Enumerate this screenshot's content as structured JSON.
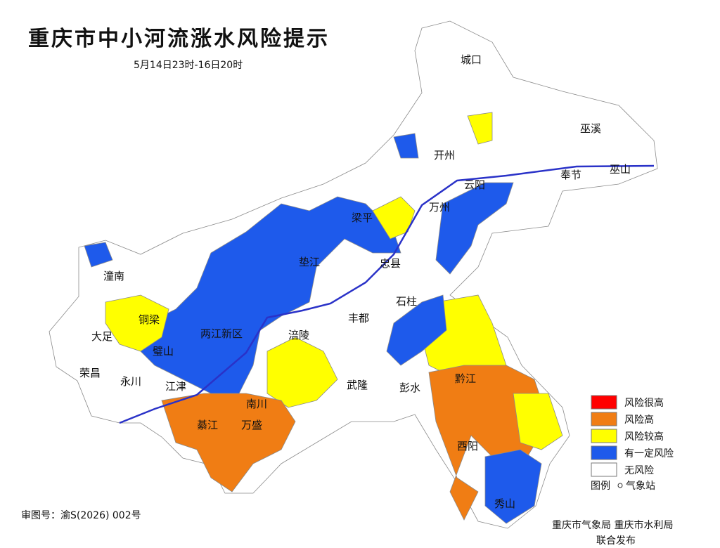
{
  "header": {
    "title": "重庆市中小河流涨水风险提示",
    "subtitle": "5月14日23时-16日20时"
  },
  "legend": {
    "items": [
      {
        "label": "风险很高",
        "color": "#ff0000"
      },
      {
        "label": "风险高",
        "color": "#f07d14"
      },
      {
        "label": "风险较高",
        "color": "#ffff00"
      },
      {
        "label": "有一定风险",
        "color": "#1e5aeb"
      },
      {
        "label": "无风险",
        "color": "#ffffff"
      }
    ],
    "caption": "图例",
    "station": "气象站"
  },
  "places": [
    "城口",
    "巫溪",
    "开州",
    "云阳",
    "奉节",
    "巫山",
    "万州",
    "梁平",
    "忠县",
    "垫江",
    "石柱",
    "丰都",
    "涪陵",
    "潼南",
    "铜梁",
    "大足",
    "荣昌",
    "永川",
    "璧山",
    "两江新区",
    "江津",
    "綦江",
    "万盛",
    "南川",
    "武隆",
    "彭水",
    "黔江",
    "酉阳",
    "秀山"
  ],
  "footer": {
    "map_number": "审图号：渝S(2026) 002号",
    "publisher": "重庆市气象局  重庆市水利局",
    "publisher_line2": "联合发布"
  }
}
